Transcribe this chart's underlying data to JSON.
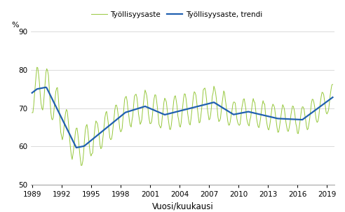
{
  "title": "",
  "ylabel": "%",
  "xlabel": "Vuosi/kuukausi",
  "legend_line1": "Työllisyysaste",
  "legend_line2": "Työllisyysaste, trendi",
  "line1_color": "#96c83c",
  "line2_color": "#2060b0",
  "ylim": [
    50,
    90
  ],
  "yticks": [
    50,
    60,
    70,
    80,
    90
  ],
  "xtick_years": [
    1989,
    1992,
    1995,
    1998,
    2001,
    2004,
    2007,
    2010,
    2013,
    2016,
    2019
  ],
  "start_year": 1989,
  "start_month": 1,
  "end_year": 2019,
  "end_month": 8
}
